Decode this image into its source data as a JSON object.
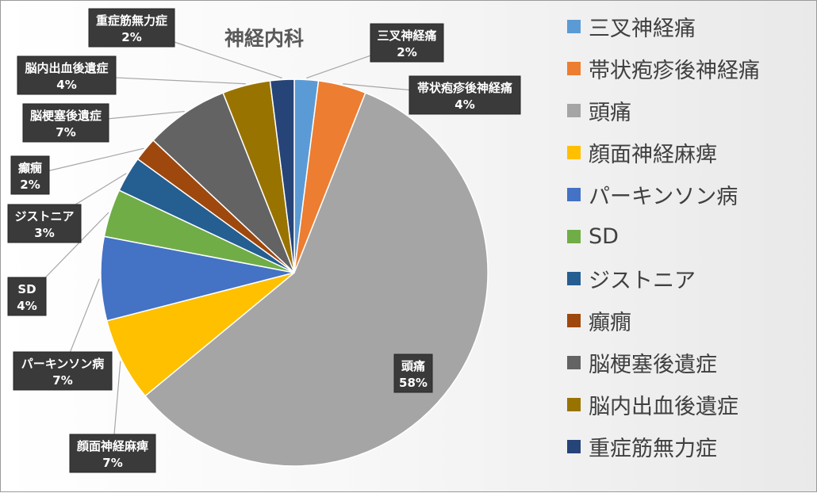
{
  "chart_data": {
    "type": "pie",
    "title": "神経内科",
    "legend_position": "right",
    "slices": [
      {
        "label": "三叉神経痛",
        "value": 2,
        "display": "2%",
        "color": "#5B9BD5"
      },
      {
        "label": "帯状疱疹後神経痛",
        "value": 4,
        "display": "4%",
        "color": "#ED7D31"
      },
      {
        "label": "頭痛",
        "value": 58,
        "display": "58%",
        "color": "#A5A5A5"
      },
      {
        "label": "顔面神経麻痺",
        "value": 7,
        "display": "7%",
        "color": "#FFC000"
      },
      {
        "label": "パーキンソン病",
        "value": 7,
        "display": "7%",
        "color": "#4472C4"
      },
      {
        "label": "SD",
        "value": 4,
        "display": "4%",
        "color": "#70AD47"
      },
      {
        "label": "ジストニア",
        "value": 3,
        "display": "3%",
        "color": "#255E91"
      },
      {
        "label": "癲癇",
        "value": 2,
        "display": "2%",
        "color": "#9E480E"
      },
      {
        "label": "脳梗塞後遺症",
        "value": 7,
        "display": "7%",
        "color": "#636363"
      },
      {
        "label": "脳内出血後遺症",
        "value": 4,
        "display": "4%",
        "color": "#997300"
      },
      {
        "label": "重症筋無力症",
        "value": 2,
        "display": "2%",
        "color": "#264478"
      }
    ]
  }
}
